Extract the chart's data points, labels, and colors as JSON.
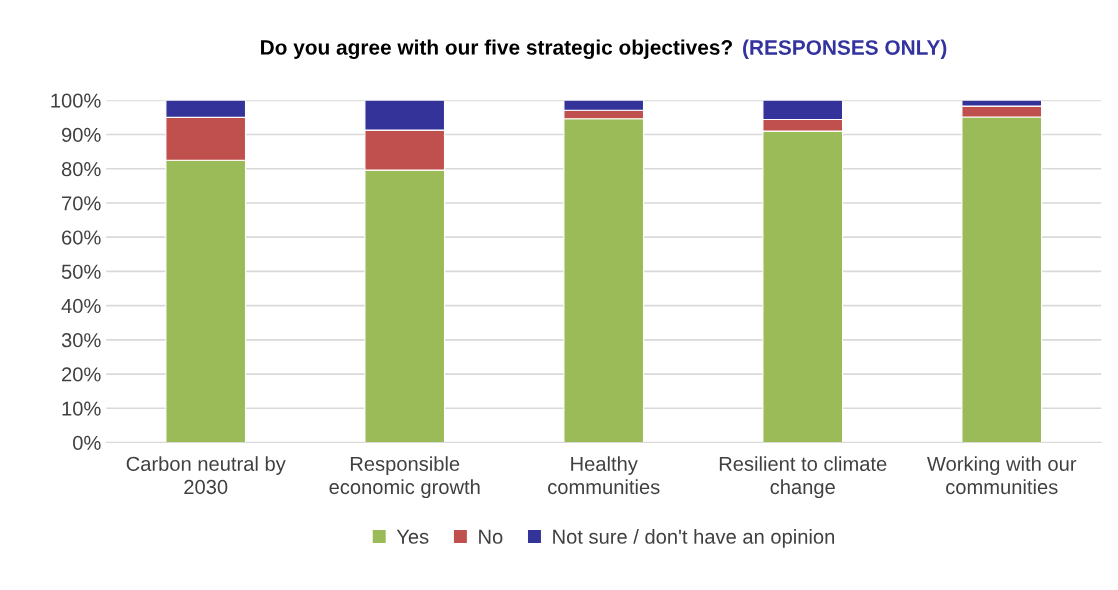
{
  "chart_data": {
    "type": "bar",
    "stacked": true,
    "title": "Do you agree with our five strategic objectives?",
    "subtitle": "(RESPONSES ONLY)",
    "categories": [
      "Carbon neutral by 2030",
      "Responsible economic growth",
      "Healthy communities",
      "Resilient to climate change",
      "Working with our communities"
    ],
    "series": [
      {
        "name": "Yes",
        "color": "#9bbb59",
        "values": [
          82.5,
          79.6,
          94.6,
          91.0,
          95.1
        ]
      },
      {
        "name": "No",
        "color": "#c0504d",
        "values": [
          12.5,
          11.7,
          2.5,
          3.4,
          3.2
        ]
      },
      {
        "name": "Not sure / don't have an opinion",
        "color": "#333399",
        "values": [
          5.0,
          8.7,
          2.9,
          5.6,
          1.7
        ]
      }
    ],
    "ylim": [
      0,
      100
    ],
    "yticks": [
      {
        "value": 0,
        "label": "0%"
      },
      {
        "value": 10,
        "label": "10%"
      },
      {
        "value": 20,
        "label": "20%"
      },
      {
        "value": 30,
        "label": "30%"
      },
      {
        "value": 40,
        "label": "40%"
      },
      {
        "value": 50,
        "label": "50%"
      },
      {
        "value": 60,
        "label": "60%"
      },
      {
        "value": 70,
        "label": "70%"
      },
      {
        "value": 80,
        "label": "80%"
      },
      {
        "value": 90,
        "label": "90%"
      },
      {
        "value": 100,
        "label": "100%"
      }
    ],
    "grid": "y",
    "legend": "bottom"
  }
}
